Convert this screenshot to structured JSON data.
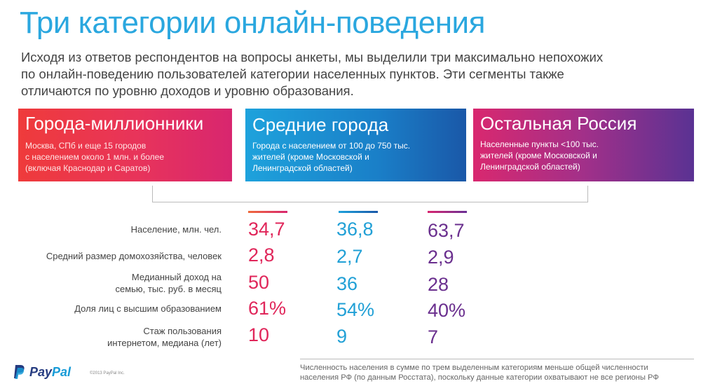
{
  "title": "Три категории онлайн-поведения",
  "intro": "Исходя из ответов респондентов на вопросы анкеты, мы выделили три максимально непохожих\nпо онлайн-поведению пользователей категории населенных пунктов. Эти сегменты также\nотличаются по уровню доходов и уровню образования.",
  "segments": [
    {
      "title": "Города-миллионники",
      "desc": "Москва, СПб и еще 15 городов\nс населением около 1 млн. и более\n(включая Краснодар и Саратов)"
    },
    {
      "title": "Средние города",
      "desc": "Города с населением от 100 до 750 тыс.\nжителей (кроме Московской и\nЛенинградской областей)"
    },
    {
      "title": "Остальная Россия",
      "desc": "Населенные пункты <100 тыс.\nжителей (кроме Московской и\nЛенинградской областей)"
    }
  ],
  "metrics": [
    {
      "label": "Население, млн. чел.",
      "values": [
        "34,7",
        "36,8",
        "63,7"
      ]
    },
    {
      "label": "Средний размер домохозяйства, человек",
      "values": [
        "2,8",
        "2,7",
        "2,9"
      ]
    },
    {
      "label": "Медианный доход на\nсемью, тыс. руб. в месяц",
      "values": [
        "50",
        "36",
        "28"
      ]
    },
    {
      "label": "Доля лиц с высшим образованием",
      "values": [
        "61%",
        "54%",
        "40%"
      ]
    },
    {
      "label": "Стаж пользования\nинтернетом, медиана (лет)",
      "values": [
        "10",
        "9",
        "7"
      ]
    }
  ],
  "footer": {
    "logo_pay": "Pay",
    "logo_pal": "Pal",
    "copyright": "©2013 PayPal Inc.",
    "note": "Численность населения в сумме по трем выделенным категориям меньше общей численности\nнаселения РФ (по данным Росстата), поскольку данные категории охватывают не все регионы РФ"
  },
  "colors": {
    "accent_blue": "#2aa7df",
    "pink": "#e0265a",
    "blue": "#21a0d6",
    "purple": "#6a2f8e"
  }
}
